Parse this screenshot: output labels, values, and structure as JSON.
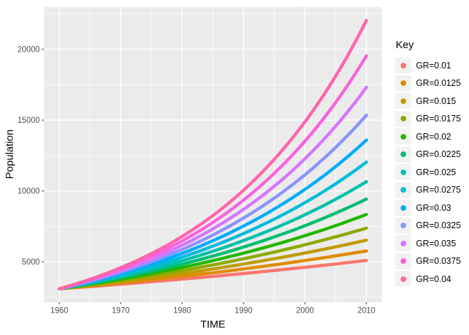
{
  "chart_data": {
    "type": "line",
    "title": "",
    "xlabel": "TIME",
    "ylabel": "Population",
    "legend_position": "right",
    "grid": true,
    "xlim": [
      1957.5,
      2012.5
    ],
    "ylim": [
      2153,
      22978
    ],
    "x_ticks": [
      1960,
      1970,
      1980,
      1990,
      2000,
      2010
    ],
    "x_minor_ticks": [
      1965,
      1975,
      1985,
      1995,
      2005
    ],
    "y_ticks": [
      5000,
      10000,
      15000,
      20000
    ],
    "y_minor_ticks": [
      2500,
      7500,
      12500,
      17500,
      22500
    ],
    "x": [
      1960,
      1965,
      1970,
      1975,
      1980,
      1985,
      1990,
      1995,
      2000,
      2005,
      2010
    ],
    "series": [
      {
        "name": "GR=0.01",
        "growth_rate": 0.01,
        "color": "#F8766D",
        "values": [
          3100,
          3258,
          3424,
          3599,
          3783,
          3975,
          4178,
          4391,
          4615,
          4851,
          5098
        ]
      },
      {
        "name": "GR=0.0125",
        "growth_rate": 0.0125,
        "color": "#E18A00",
        "values": [
          3100,
          3299,
          3510,
          3735,
          3974,
          4229,
          4500,
          4788,
          5095,
          5421,
          5768
        ]
      },
      {
        "name": "GR=0.015",
        "growth_rate": 0.015,
        "color": "#BE9C00",
        "values": [
          3100,
          3340,
          3598,
          3876,
          4175,
          4498,
          4846,
          5220,
          5624,
          6058,
          6526
        ]
      },
      {
        "name": "GR=0.0175",
        "growth_rate": 0.0175,
        "color": "#8CAB00",
        "values": [
          3100,
          3381,
          3687,
          4021,
          4386,
          4783,
          5217,
          5689,
          6205,
          6767,
          7380
        ]
      },
      {
        "name": "GR=0.02",
        "growth_rate": 0.02,
        "color": "#24B700",
        "values": [
          3100,
          3423,
          3779,
          4172,
          4606,
          5086,
          5615,
          6200,
          6845,
          7557,
          8344
        ]
      },
      {
        "name": "GR=0.0225",
        "growth_rate": 0.0225,
        "color": "#00BE70",
        "values": [
          3100,
          3465,
          3873,
          4328,
          4838,
          5407,
          6043,
          6755,
          7549,
          8438,
          9431
        ]
      },
      {
        "name": "GR=0.025",
        "growth_rate": 0.025,
        "color": "#00C1AB",
        "values": [
          3100,
          3507,
          3968,
          4490,
          5080,
          5747,
          6503,
          7357,
          8324,
          9418,
          10655
        ]
      },
      {
        "name": "GR=0.0275",
        "growth_rate": 0.0275,
        "color": "#00BBDA",
        "values": [
          3100,
          3550,
          4066,
          4657,
          5333,
          6108,
          6995,
          8012,
          9176,
          10509,
          12035
        ]
      },
      {
        "name": "GR=0.03",
        "growth_rate": 0.03,
        "color": "#00ACFC",
        "values": [
          3100,
          3594,
          4166,
          4830,
          5599,
          6491,
          7525,
          8723,
          10113,
          11724,
          13591
        ]
      },
      {
        "name": "GR=0.0325",
        "growth_rate": 0.0325,
        "color": "#8B93FF",
        "values": [
          3100,
          3638,
          4268,
          5009,
          5877,
          6896,
          8092,
          9495,
          11142,
          13074,
          15342
        ]
      },
      {
        "name": "GR=0.035",
        "growth_rate": 0.035,
        "color": "#D575FE",
        "values": [
          3100,
          3682,
          4373,
          5194,
          6168,
          7326,
          8701,
          10334,
          12273,
          14576,
          17312
        ]
      },
      {
        "name": "GR=0.0375",
        "growth_rate": 0.0375,
        "color": "#F962DD",
        "values": [
          3100,
          3727,
          4480,
          5385,
          6473,
          7781,
          9354,
          11245,
          13517,
          16249,
          19533
        ]
      },
      {
        "name": "GR=0.04",
        "growth_rate": 0.04,
        "color": "#FF65AC",
        "values": [
          3100,
          3772,
          4589,
          5583,
          6793,
          8264,
          10055,
          12233,
          14884,
          18108,
          22031
        ]
      }
    ]
  },
  "legend": {
    "title": "Key"
  },
  "style": {
    "panel_bg": "#EBEBEB",
    "grid_color": "#FFFFFF",
    "legend_key_bg": "#F2F2F2",
    "axis_text_color": "#4D4D4D",
    "axis_title_color": "#000000",
    "tick_color": "#333333",
    "line_width": 4.5
  }
}
